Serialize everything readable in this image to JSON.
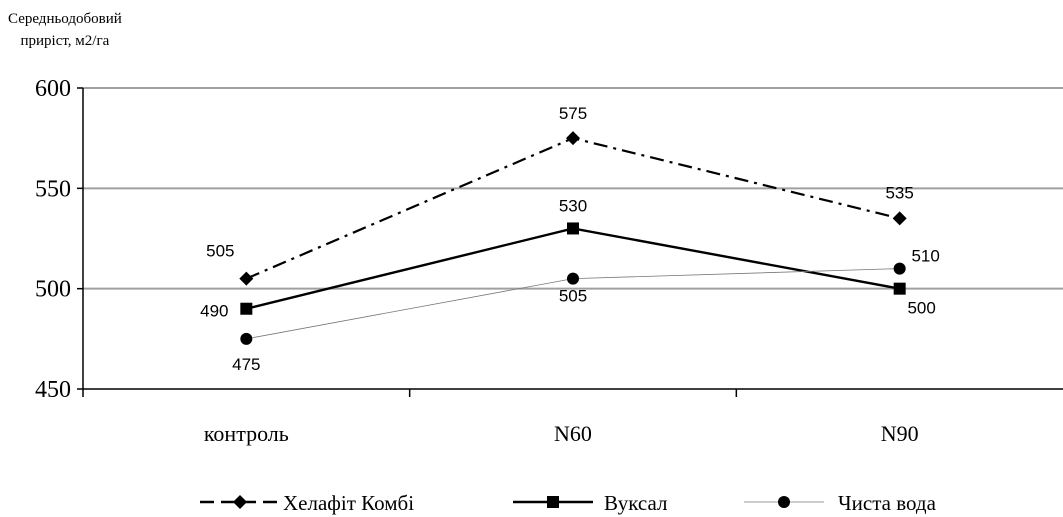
{
  "chart_data": {
    "type": "line",
    "ylabel_line1": "Середньодобовий",
    "ylabel_line2": "приріст, м2/га",
    "categories": [
      "контроль",
      "N60",
      "N90"
    ],
    "ylim": [
      450,
      600
    ],
    "yticks": [
      "450",
      "500",
      "550",
      "600"
    ],
    "grid": true,
    "legend_position": "bottom",
    "series": [
      {
        "name": "Хелафіт Комбі",
        "values": [
          505,
          575,
          535
        ],
        "marker": "diamond",
        "line": "dash-dot",
        "color": "#000000"
      },
      {
        "name": "Вуксал",
        "values": [
          490,
          530,
          500
        ],
        "marker": "square",
        "line": "solid",
        "color": "#000000"
      },
      {
        "name": "Чиста вода",
        "values": [
          475,
          505,
          510
        ],
        "marker": "circle",
        "line": "thin",
        "color": "#000000"
      }
    ],
    "data_labels": [
      [
        "505",
        "575",
        "535"
      ],
      [
        "490",
        "530",
        "500"
      ],
      [
        "475",
        "505",
        "510"
      ]
    ]
  }
}
